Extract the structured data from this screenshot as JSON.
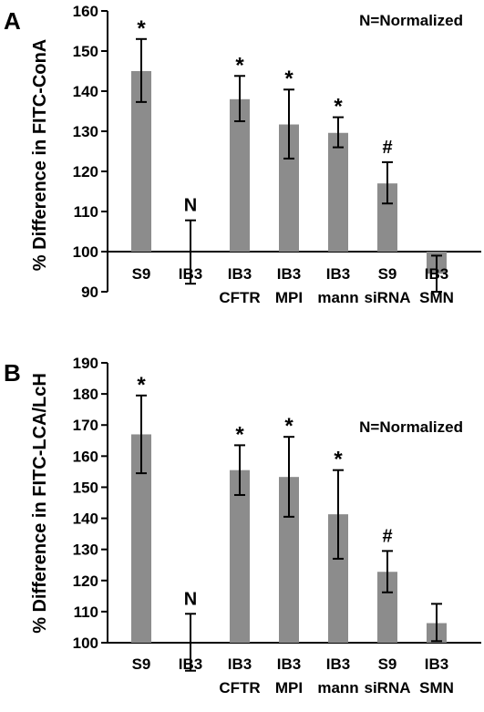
{
  "chart_data": [
    {
      "type": "bar",
      "panel_label": "A",
      "ylabel": "% Difference in FITC-ConA",
      "annotation": "N=Normalized",
      "categories": [
        {
          "line1": "S9",
          "line2": ""
        },
        {
          "line1": "IB3",
          "line2": ""
        },
        {
          "line1": "IB3",
          "line2": "CFTR"
        },
        {
          "line1": "IB3",
          "line2": "MPI"
        },
        {
          "line1": "IB3",
          "line2": "mann"
        },
        {
          "line1": "S9",
          "line2": "siRNA"
        },
        {
          "line1": "IB3",
          "line2": "SMN"
        }
      ],
      "values": [
        145,
        100,
        138,
        131.7,
        129.6,
        117,
        94.5
      ],
      "error_low": [
        137.3,
        92,
        132.5,
        123.2,
        126,
        112,
        90
      ],
      "error_high": [
        153,
        107.8,
        143.8,
        140.4,
        133.5,
        122.3,
        99
      ],
      "markers": [
        "*",
        "N",
        "*",
        "*",
        "*",
        "#",
        ""
      ],
      "ylim": [
        90,
        160
      ],
      "yticks": [
        "90",
        "100",
        "110",
        "120",
        "130",
        "140",
        "150",
        "160"
      ],
      "baseline": 100,
      "bar_color": "#8c8c8c"
    },
    {
      "type": "bar",
      "panel_label": "B",
      "ylabel": "% Difference in FITC-LCA/LcH",
      "annotation": "N=Normalized",
      "categories": [
        {
          "line1": "S9",
          "line2": ""
        },
        {
          "line1": "IB3",
          "line2": ""
        },
        {
          "line1": "IB3",
          "line2": "CFTR"
        },
        {
          "line1": "IB3",
          "line2": "MPI"
        },
        {
          "line1": "IB3",
          "line2": "mann"
        },
        {
          "line1": "S9",
          "line2": "siRNA"
        },
        {
          "line1": "IB3",
          "line2": "SMN"
        }
      ],
      "values": [
        167,
        100,
        155.5,
        153.3,
        141.3,
        122.8,
        106.3
      ],
      "error_low": [
        154.5,
        91,
        147.5,
        140.5,
        127,
        116.2,
        100.5
      ],
      "error_high": [
        179.5,
        109.3,
        163.5,
        166.2,
        155.5,
        129.5,
        112.5
      ],
      "markers": [
        "*",
        "N",
        "*",
        "*",
        "*",
        "#",
        ""
      ],
      "ylim": [
        100,
        190
      ],
      "yticks": [
        "100",
        "110",
        "120",
        "130",
        "140",
        "150",
        "160",
        "170",
        "180",
        "190"
      ],
      "baseline": 100,
      "bar_color": "#8c8c8c"
    }
  ]
}
